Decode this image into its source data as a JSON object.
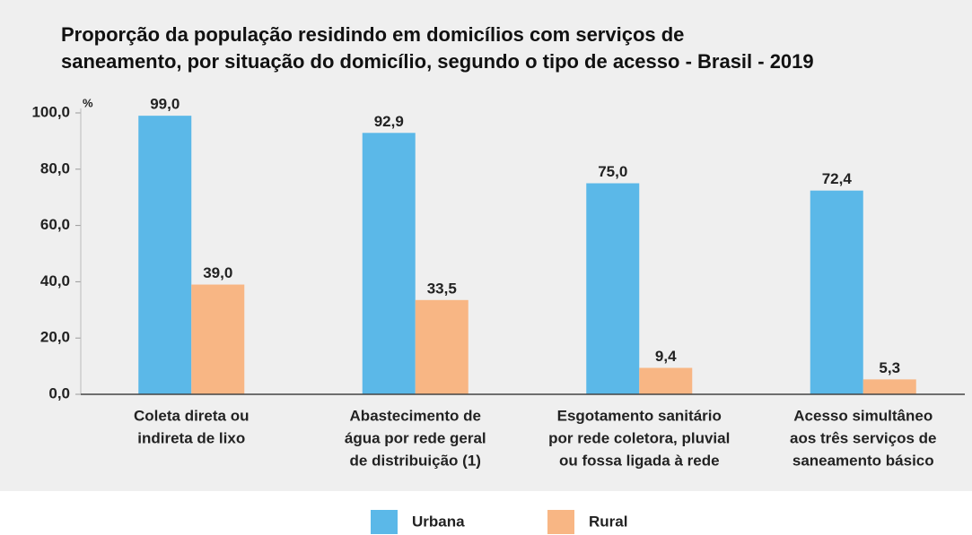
{
  "chart_data": {
    "type": "bar",
    "title_lines": [
      "Proporção da população residindo em domicílios com serviços de",
      "saneamento, por situação do domicílio, segundo o tipo de acesso - Brasil - 2019"
    ],
    "y_unit": "%",
    "categories": [
      [
        "Coleta direta ou",
        "indireta de lixo"
      ],
      [
        "Abastecimento de",
        "água por rede geral",
        "de distribuição (1)"
      ],
      [
        "Esgotamento sanitário",
        "por rede coletora, pluvial",
        "ou fossa ligada à rede"
      ],
      [
        "Acesso simultâneo",
        "aos três serviços de",
        "saneamento básico"
      ]
    ],
    "series": [
      {
        "name": "Urbana",
        "color": "#5bb8e8",
        "values": [
          99.0,
          92.9,
          75.0,
          72.4
        ],
        "value_labels": [
          "99,0",
          "92,9",
          "75,0",
          "72,4"
        ]
      },
      {
        "name": "Rural",
        "color": "#f8b684",
        "values": [
          39.0,
          33.5,
          9.4,
          5.3
        ],
        "value_labels": [
          "39,0",
          "33,5",
          "9,4",
          "5,3"
        ]
      }
    ],
    "ylim": [
      0,
      100
    ],
    "yticks": [
      {
        "value": 0,
        "label": "0,0"
      },
      {
        "value": 20,
        "label": "20,0"
      },
      {
        "value": 40,
        "label": "40,0"
      },
      {
        "value": 60,
        "label": "60,0"
      },
      {
        "value": 80,
        "label": "80,0"
      },
      {
        "value": 100,
        "label": "100,0"
      }
    ],
    "legend": "bottom"
  }
}
